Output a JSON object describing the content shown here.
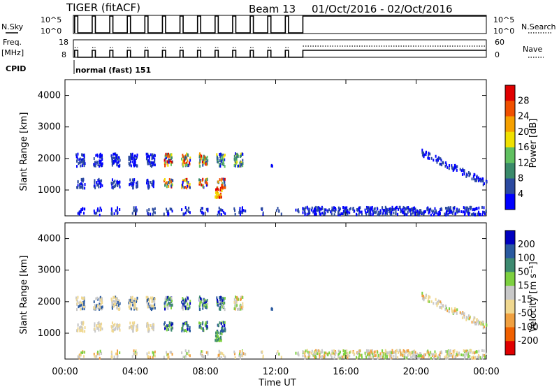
{
  "header": {
    "radar": "TIGER (fitACF)",
    "beam": "Beam 13",
    "dates": "01/Oct/2016 - 02/Oct/2016"
  },
  "strip_labels": {
    "nsky": "N.Sky",
    "nsky_ticks": [
      "10^5",
      "10^0"
    ],
    "nsearch": "N.Search",
    "nsearch_ticks": [
      "10^5",
      "10^0"
    ],
    "freq_line1": "Freq.",
    "freq_line2": "[MHz]",
    "freq_ticks": [
      "18",
      "8"
    ],
    "nave": "Nave",
    "nave_ticks": [
      "60",
      "0"
    ],
    "cpid": "CPID",
    "cpid_text": "normal (fast) 151"
  },
  "panels": {
    "ylabel": "Slant Range [km]",
    "yticks": [
      "4000",
      "3000",
      "2000",
      "1000"
    ],
    "xticks": [
      "00:00",
      "04:00",
      "08:00",
      "12:00",
      "16:00",
      "20:00",
      "00:00"
    ],
    "xlabel": "Time UT"
  },
  "power_colorbar": {
    "label": "Power [dB]",
    "ticks": [
      "28",
      "24",
      "20",
      "16",
      "12",
      "8",
      "4"
    ],
    "colors": [
      "#e00000",
      "#f05000",
      "#f5a000",
      "#f0e000",
      "#60c060",
      "#3a8a6a",
      "#2b4aa0",
      "#0000ff"
    ]
  },
  "velocity_colorbar": {
    "label": "Velocity [m s⁻¹]",
    "ticks": [
      "200",
      "100",
      "50",
      "15",
      "-15",
      "-50",
      "-100",
      "-200"
    ],
    "colors": [
      "#0000c0",
      "#2a5aa0",
      "#3d8a70",
      "#7dd040",
      "#c8c8c8",
      "#f0d890",
      "#f0a040",
      "#f06000",
      "#e00000"
    ]
  },
  "chart_data": {
    "type": "heatmap",
    "x_range_hours": [
      0,
      24
    ],
    "y_range_km": [
      180,
      4500
    ],
    "panels": [
      "Power [dB]",
      "Velocity [m s⁻¹]"
    ],
    "note": "scatter echoes: 00-10 UT periodic bursts near 1000-2200 km, 13.5-24 UT ground scatter near 300-500 km, 20-24 UT descending band 2200->1200 km"
  }
}
